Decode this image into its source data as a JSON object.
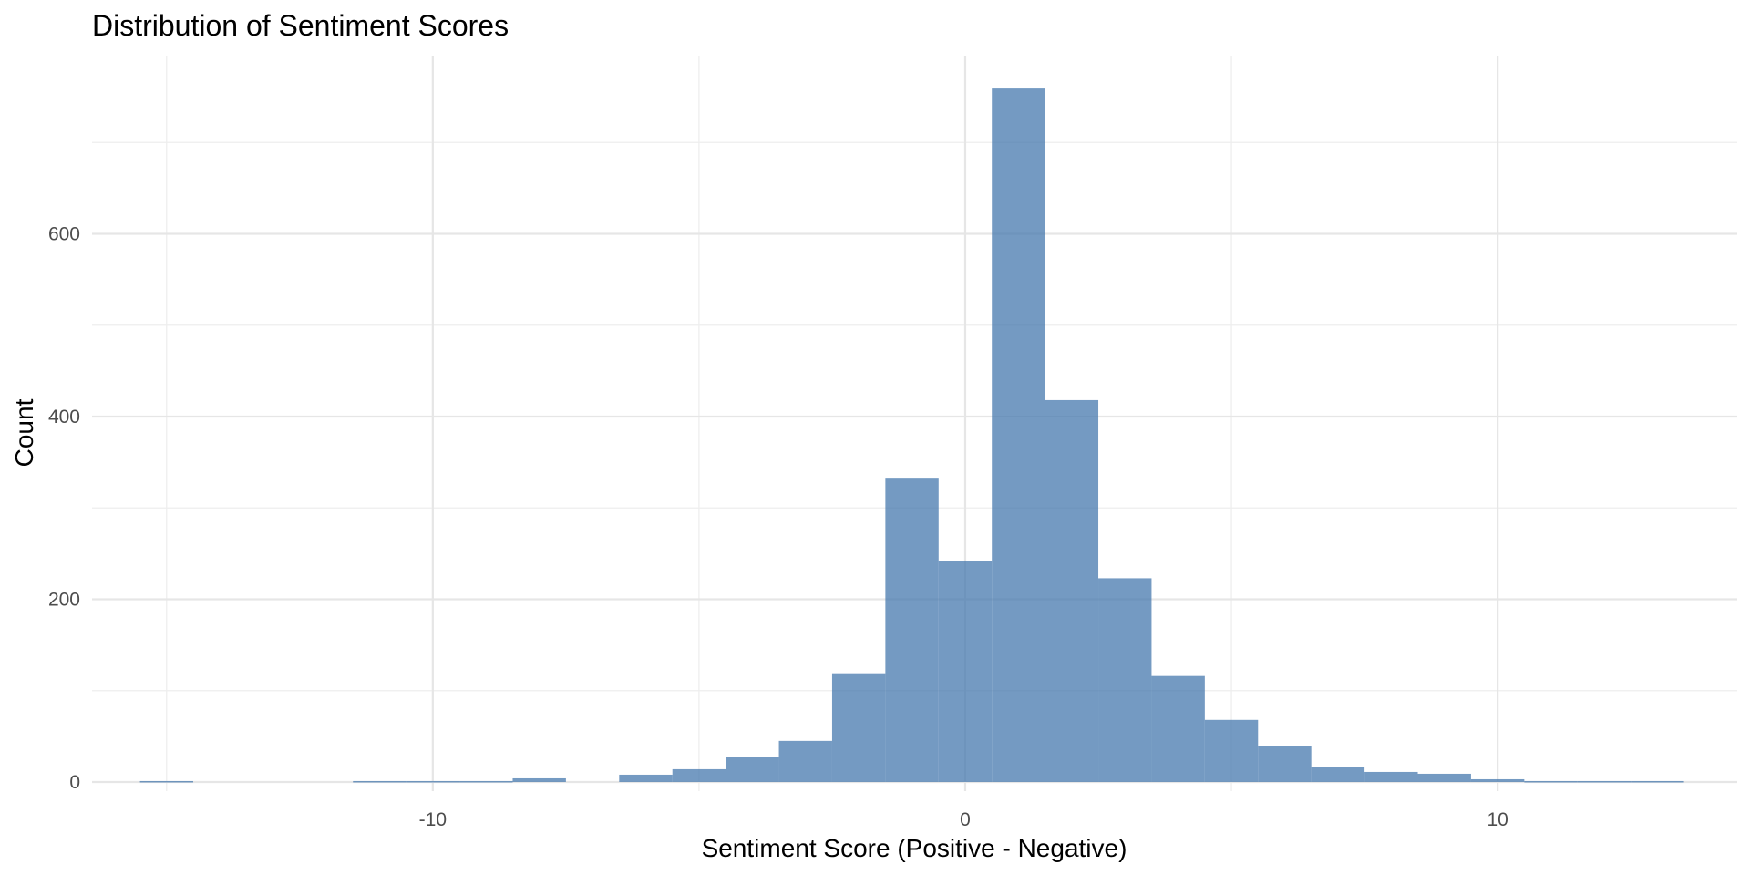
{
  "chart_data": {
    "type": "bar",
    "subtype": "histogram",
    "title": "Distribution of Sentiment Scores",
    "xlabel": "Sentiment Score (Positive - Negative)",
    "ylabel": "Count",
    "bin_width": 1,
    "bins": [
      {
        "x0": -15.5,
        "x1": -14.5,
        "count": 1
      },
      {
        "x0": -14.5,
        "x1": -13.5,
        "count": 0
      },
      {
        "x0": -13.5,
        "x1": -12.5,
        "count": 0
      },
      {
        "x0": -12.5,
        "x1": -11.5,
        "count": 0
      },
      {
        "x0": -11.5,
        "x1": -10.5,
        "count": 1
      },
      {
        "x0": -10.5,
        "x1": -9.5,
        "count": 1
      },
      {
        "x0": -9.5,
        "x1": -8.5,
        "count": 1
      },
      {
        "x0": -8.5,
        "x1": -7.5,
        "count": 4
      },
      {
        "x0": -7.5,
        "x1": -6.5,
        "count": 0
      },
      {
        "x0": -6.5,
        "x1": -5.5,
        "count": 8
      },
      {
        "x0": -5.5,
        "x1": -4.5,
        "count": 14
      },
      {
        "x0": -4.5,
        "x1": -3.5,
        "count": 27
      },
      {
        "x0": -3.5,
        "x1": -2.5,
        "count": 45
      },
      {
        "x0": -2.5,
        "x1": -1.5,
        "count": 119
      },
      {
        "x0": -1.5,
        "x1": -0.5,
        "count": 333
      },
      {
        "x0": -0.5,
        "x1": 0.5,
        "count": 242
      },
      {
        "x0": 0.5,
        "x1": 1.5,
        "count": 759
      },
      {
        "x0": 1.5,
        "x1": 2.5,
        "count": 418
      },
      {
        "x0": 2.5,
        "x1": 3.5,
        "count": 223
      },
      {
        "x0": 3.5,
        "x1": 4.5,
        "count": 116
      },
      {
        "x0": 4.5,
        "x1": 5.5,
        "count": 68
      },
      {
        "x0": 5.5,
        "x1": 6.5,
        "count": 39
      },
      {
        "x0": 6.5,
        "x1": 7.5,
        "count": 16
      },
      {
        "x0": 7.5,
        "x1": 8.5,
        "count": 11
      },
      {
        "x0": 8.5,
        "x1": 9.5,
        "count": 9
      },
      {
        "x0": 9.5,
        "x1": 10.5,
        "count": 3
      },
      {
        "x0": 10.5,
        "x1": 11.5,
        "count": 1
      },
      {
        "x0": 11.5,
        "x1": 12.5,
        "count": 1
      },
      {
        "x0": 12.5,
        "x1": 13.5,
        "count": 1
      }
    ],
    "xlim": [
      -16.4,
      14.5
    ],
    "ylim": [
      -10,
      795
    ],
    "x_ticks": [
      -10,
      0,
      10
    ],
    "x_tick_labels": [
      "-10",
      "0",
      "10"
    ],
    "y_ticks": [
      0,
      200,
      400,
      600
    ],
    "y_tick_labels": [
      "0",
      "200",
      "400",
      "600"
    ],
    "x_minor_ticks": [
      -15,
      -5,
      5
    ],
    "y_minor_ticks": [
      100,
      300,
      500,
      700
    ],
    "grid": true,
    "legend": "none",
    "bar_color": "#4a7bb0",
    "bar_opacity": 0.77
  }
}
